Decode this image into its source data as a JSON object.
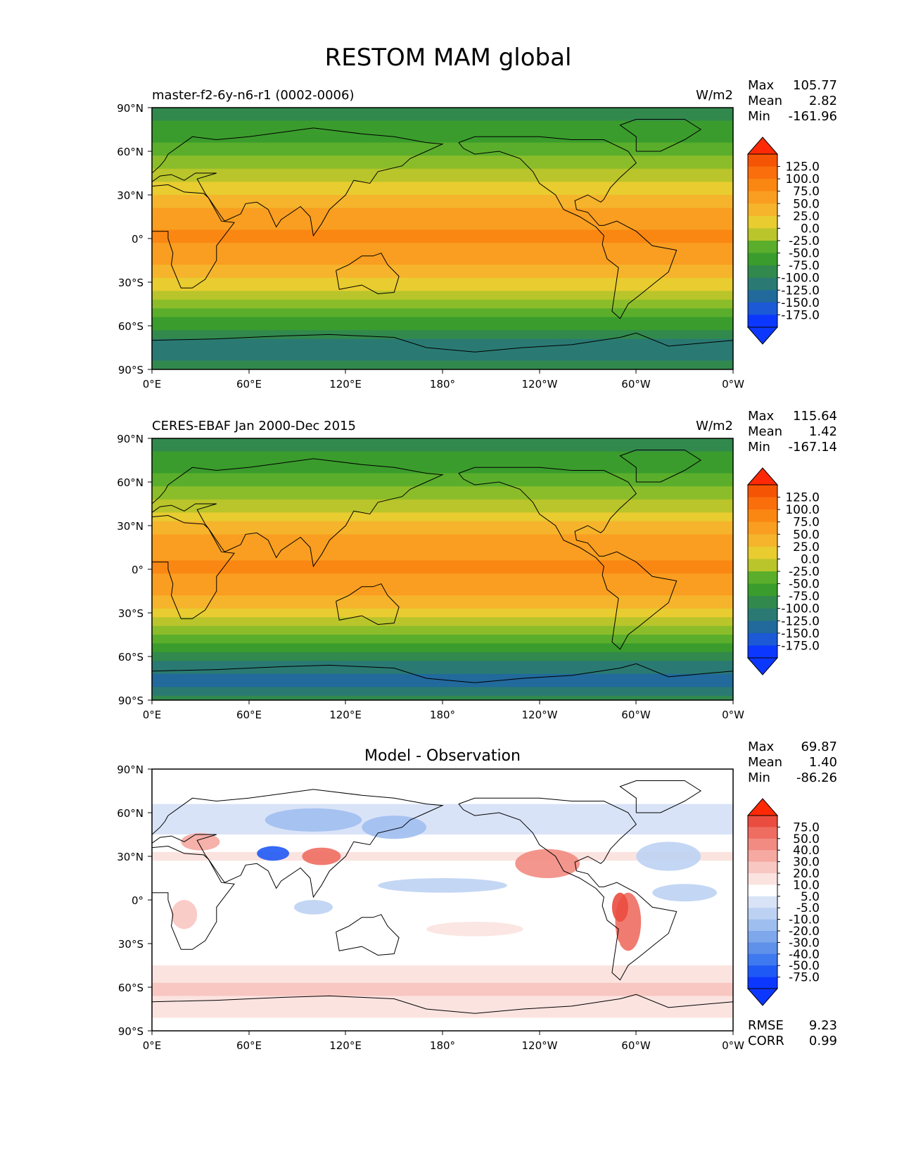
{
  "figure": {
    "title": "RESTOM MAM global"
  },
  "colors": {
    "land_line": "#000000",
    "seq_palette": [
      "#0c37ff",
      "#1b59d6",
      "#22699c",
      "#2a7a73",
      "#32894d",
      "#3a9c2c",
      "#5aae2b",
      "#8bbd2a",
      "#b9c52a",
      "#e8cc30",
      "#f5b42c",
      "#f99e20",
      "#fb8713",
      "#fa6e0c",
      "#f45404",
      "#ff2a05"
    ],
    "diff_palette": [
      "#0c37ff",
      "#1f59f5",
      "#3f79f0",
      "#5f91ea",
      "#7ea8eb",
      "#9ebeef",
      "#bdd2f3",
      "#d9e3f7",
      "#ffffff",
      "#fbe3e0",
      "#f8c7c1",
      "#f5a9a1",
      "#f28b81",
      "#ee6d60",
      "#ea4c3f",
      "#ff2a05"
    ]
  },
  "panels": [
    {
      "id": "model",
      "left_title": "master-f2-6y-n6-r1 (0002-0006)",
      "center_title": "",
      "units": "W/m2",
      "stats": [
        {
          "label": "Max",
          "value": "105.77"
        },
        {
          "label": "Mean",
          "value": "2.82"
        },
        {
          "label": "Min",
          "value": "-161.96"
        }
      ],
      "colorbar": {
        "levels": [
          "125.0",
          "100.0",
          "75.0",
          "50.0",
          "25.0",
          "0.0",
          "-25.0",
          "-50.0",
          "-75.0",
          "-100.0",
          "-125.0",
          "-150.0",
          "-175.0"
        ],
        "extend": "both"
      },
      "metrics": []
    },
    {
      "id": "obs",
      "left_title": "CERES-EBAF Jan 2000-Dec 2015",
      "center_title": "",
      "units": "W/m2",
      "stats": [
        {
          "label": "Max",
          "value": "115.64"
        },
        {
          "label": "Mean",
          "value": "1.42"
        },
        {
          "label": "Min",
          "value": "-167.14"
        }
      ],
      "colorbar": {
        "levels": [
          "125.0",
          "100.0",
          "75.0",
          "50.0",
          "25.0",
          "0.0",
          "-25.0",
          "-50.0",
          "-75.0",
          "-100.0",
          "-125.0",
          "-150.0",
          "-175.0"
        ],
        "extend": "both"
      },
      "metrics": []
    },
    {
      "id": "diff",
      "left_title": "",
      "center_title": "Model - Observation",
      "units": "",
      "stats": [
        {
          "label": "Max",
          "value": "69.87"
        },
        {
          "label": "Mean",
          "value": "1.40"
        },
        {
          "label": "Min",
          "value": "-86.26"
        }
      ],
      "colorbar": {
        "levels": [
          "75.0",
          "50.0",
          "40.0",
          "30.0",
          "20.0",
          "10.0",
          "5.0",
          "-5.0",
          "-10.0",
          "-20.0",
          "-30.0",
          "-40.0",
          "-50.0",
          "-75.0"
        ],
        "extend": "both"
      },
      "metrics": [
        {
          "label": "RMSE",
          "value": "9.23"
        },
        {
          "label": "CORR",
          "value": "0.99"
        }
      ]
    }
  ],
  "chart_data": [
    {
      "type": "heatmap",
      "title": "master-f2-6y-n6-r1 (0002-0006)",
      "units": "W/m2",
      "xlim": [
        0,
        360
      ],
      "ylim": [
        -90,
        90
      ],
      "x_tick_labels": [
        "0°E",
        "60°E",
        "120°E",
        "180°",
        "120°W",
        "60°W",
        "0°W"
      ],
      "y_tick_labels": [
        "90°N",
        "60°N",
        "30°N",
        "0°",
        "30°S",
        "60°S",
        "90°S"
      ],
      "zonal_profile": {
        "lat": [
          90,
          75,
          60,
          45,
          30,
          15,
          0,
          -15,
          -30,
          -45,
          -60,
          -75,
          -90
        ],
        "value": [
          -105,
          -95,
          -60,
          -20,
          30,
          70,
          80,
          60,
          20,
          -40,
          -90,
          -150,
          -110
        ]
      },
      "max": 105.77,
      "mean": 2.82,
      "min": -161.96
    },
    {
      "type": "heatmap",
      "title": "CERES-EBAF Jan 2000-Dec 2015",
      "units": "W/m2",
      "xlim": [
        0,
        360
      ],
      "ylim": [
        -90,
        90
      ],
      "x_tick_labels": [
        "0°E",
        "60°E",
        "120°E",
        "180°",
        "120°W",
        "60°W",
        "0°W"
      ],
      "y_tick_labels": [
        "90°N",
        "60°N",
        "30°N",
        "0°",
        "30°S",
        "60°S",
        "90°S"
      ],
      "zonal_profile": {
        "lat": [
          90,
          75,
          60,
          45,
          30,
          15,
          0,
          -15,
          -30,
          -45,
          -60,
          -75,
          -90
        ],
        "value": [
          -105,
          -95,
          -55,
          -15,
          35,
          70,
          78,
          55,
          15,
          -45,
          -110,
          -165,
          -120
        ]
      },
      "max": 115.64,
      "mean": 1.42,
      "min": -167.14
    },
    {
      "type": "heatmap",
      "title": "Model - Observation",
      "xlim": [
        0,
        360
      ],
      "ylim": [
        -90,
        90
      ],
      "x_tick_labels": [
        "0°E",
        "60°E",
        "120°E",
        "180°",
        "120°W",
        "60°W",
        "0°W"
      ],
      "y_tick_labels": [
        "90°N",
        "60°N",
        "30°N",
        "0°",
        "30°S",
        "60°S",
        "90°S"
      ],
      "zonal_profile": {
        "lat": [
          90,
          75,
          60,
          45,
          30,
          15,
          0,
          -15,
          -30,
          -45,
          -60,
          -75,
          -90
        ],
        "value": [
          0,
          5,
          -10,
          -5,
          8,
          -5,
          0,
          5,
          3,
          5,
          12,
          8,
          0
        ]
      },
      "max": 69.87,
      "mean": 1.4,
      "min": -86.26,
      "rmse": 9.23,
      "corr": 0.99
    }
  ]
}
